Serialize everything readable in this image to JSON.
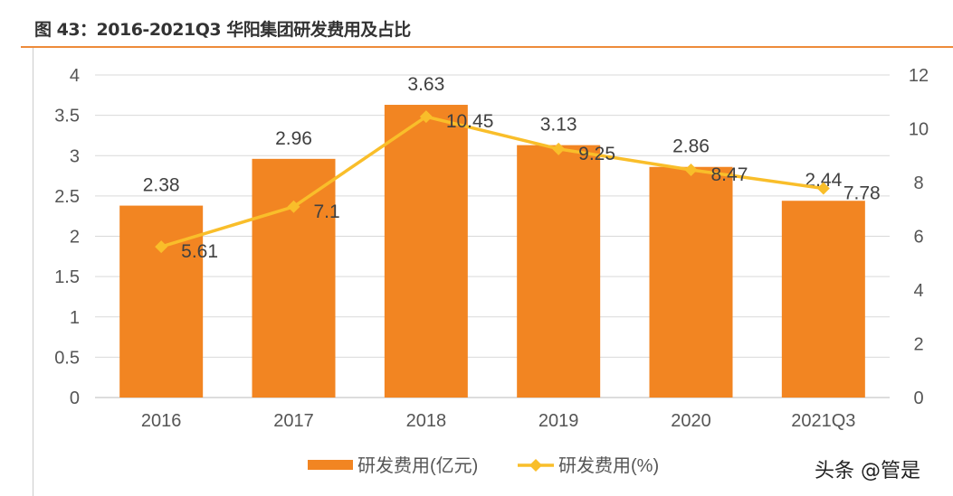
{
  "title": "图 43：2016-2021Q3 华阳集团研发费用及占比",
  "watermark": "头条 @管是",
  "chart_data": {
    "type": "bar+line",
    "categories": [
      "2016",
      "2017",
      "2018",
      "2019",
      "2020",
      "2021Q3"
    ],
    "series": [
      {
        "name": "研发费用(亿元)",
        "type": "bar",
        "axis": "left",
        "color": "#F28522",
        "values": [
          2.38,
          2.96,
          3.63,
          3.13,
          2.86,
          2.44
        ]
      },
      {
        "name": "研发费用(%)",
        "type": "line",
        "axis": "right",
        "color": "#F9BE2A",
        "marker": "diamond",
        "values": [
          5.61,
          7.1,
          10.45,
          9.25,
          8.47,
          7.78
        ]
      }
    ],
    "y_left": {
      "range": [
        0,
        4
      ],
      "ticks": [
        "0",
        "0.5",
        "1",
        "1.5",
        "2",
        "2.5",
        "3",
        "3.5",
        "4"
      ]
    },
    "y_right": {
      "range": [
        0,
        12
      ],
      "ticks": [
        "0",
        "2",
        "4",
        "6",
        "8",
        "10",
        "12"
      ]
    },
    "grid": true,
    "legend": "bottom"
  }
}
